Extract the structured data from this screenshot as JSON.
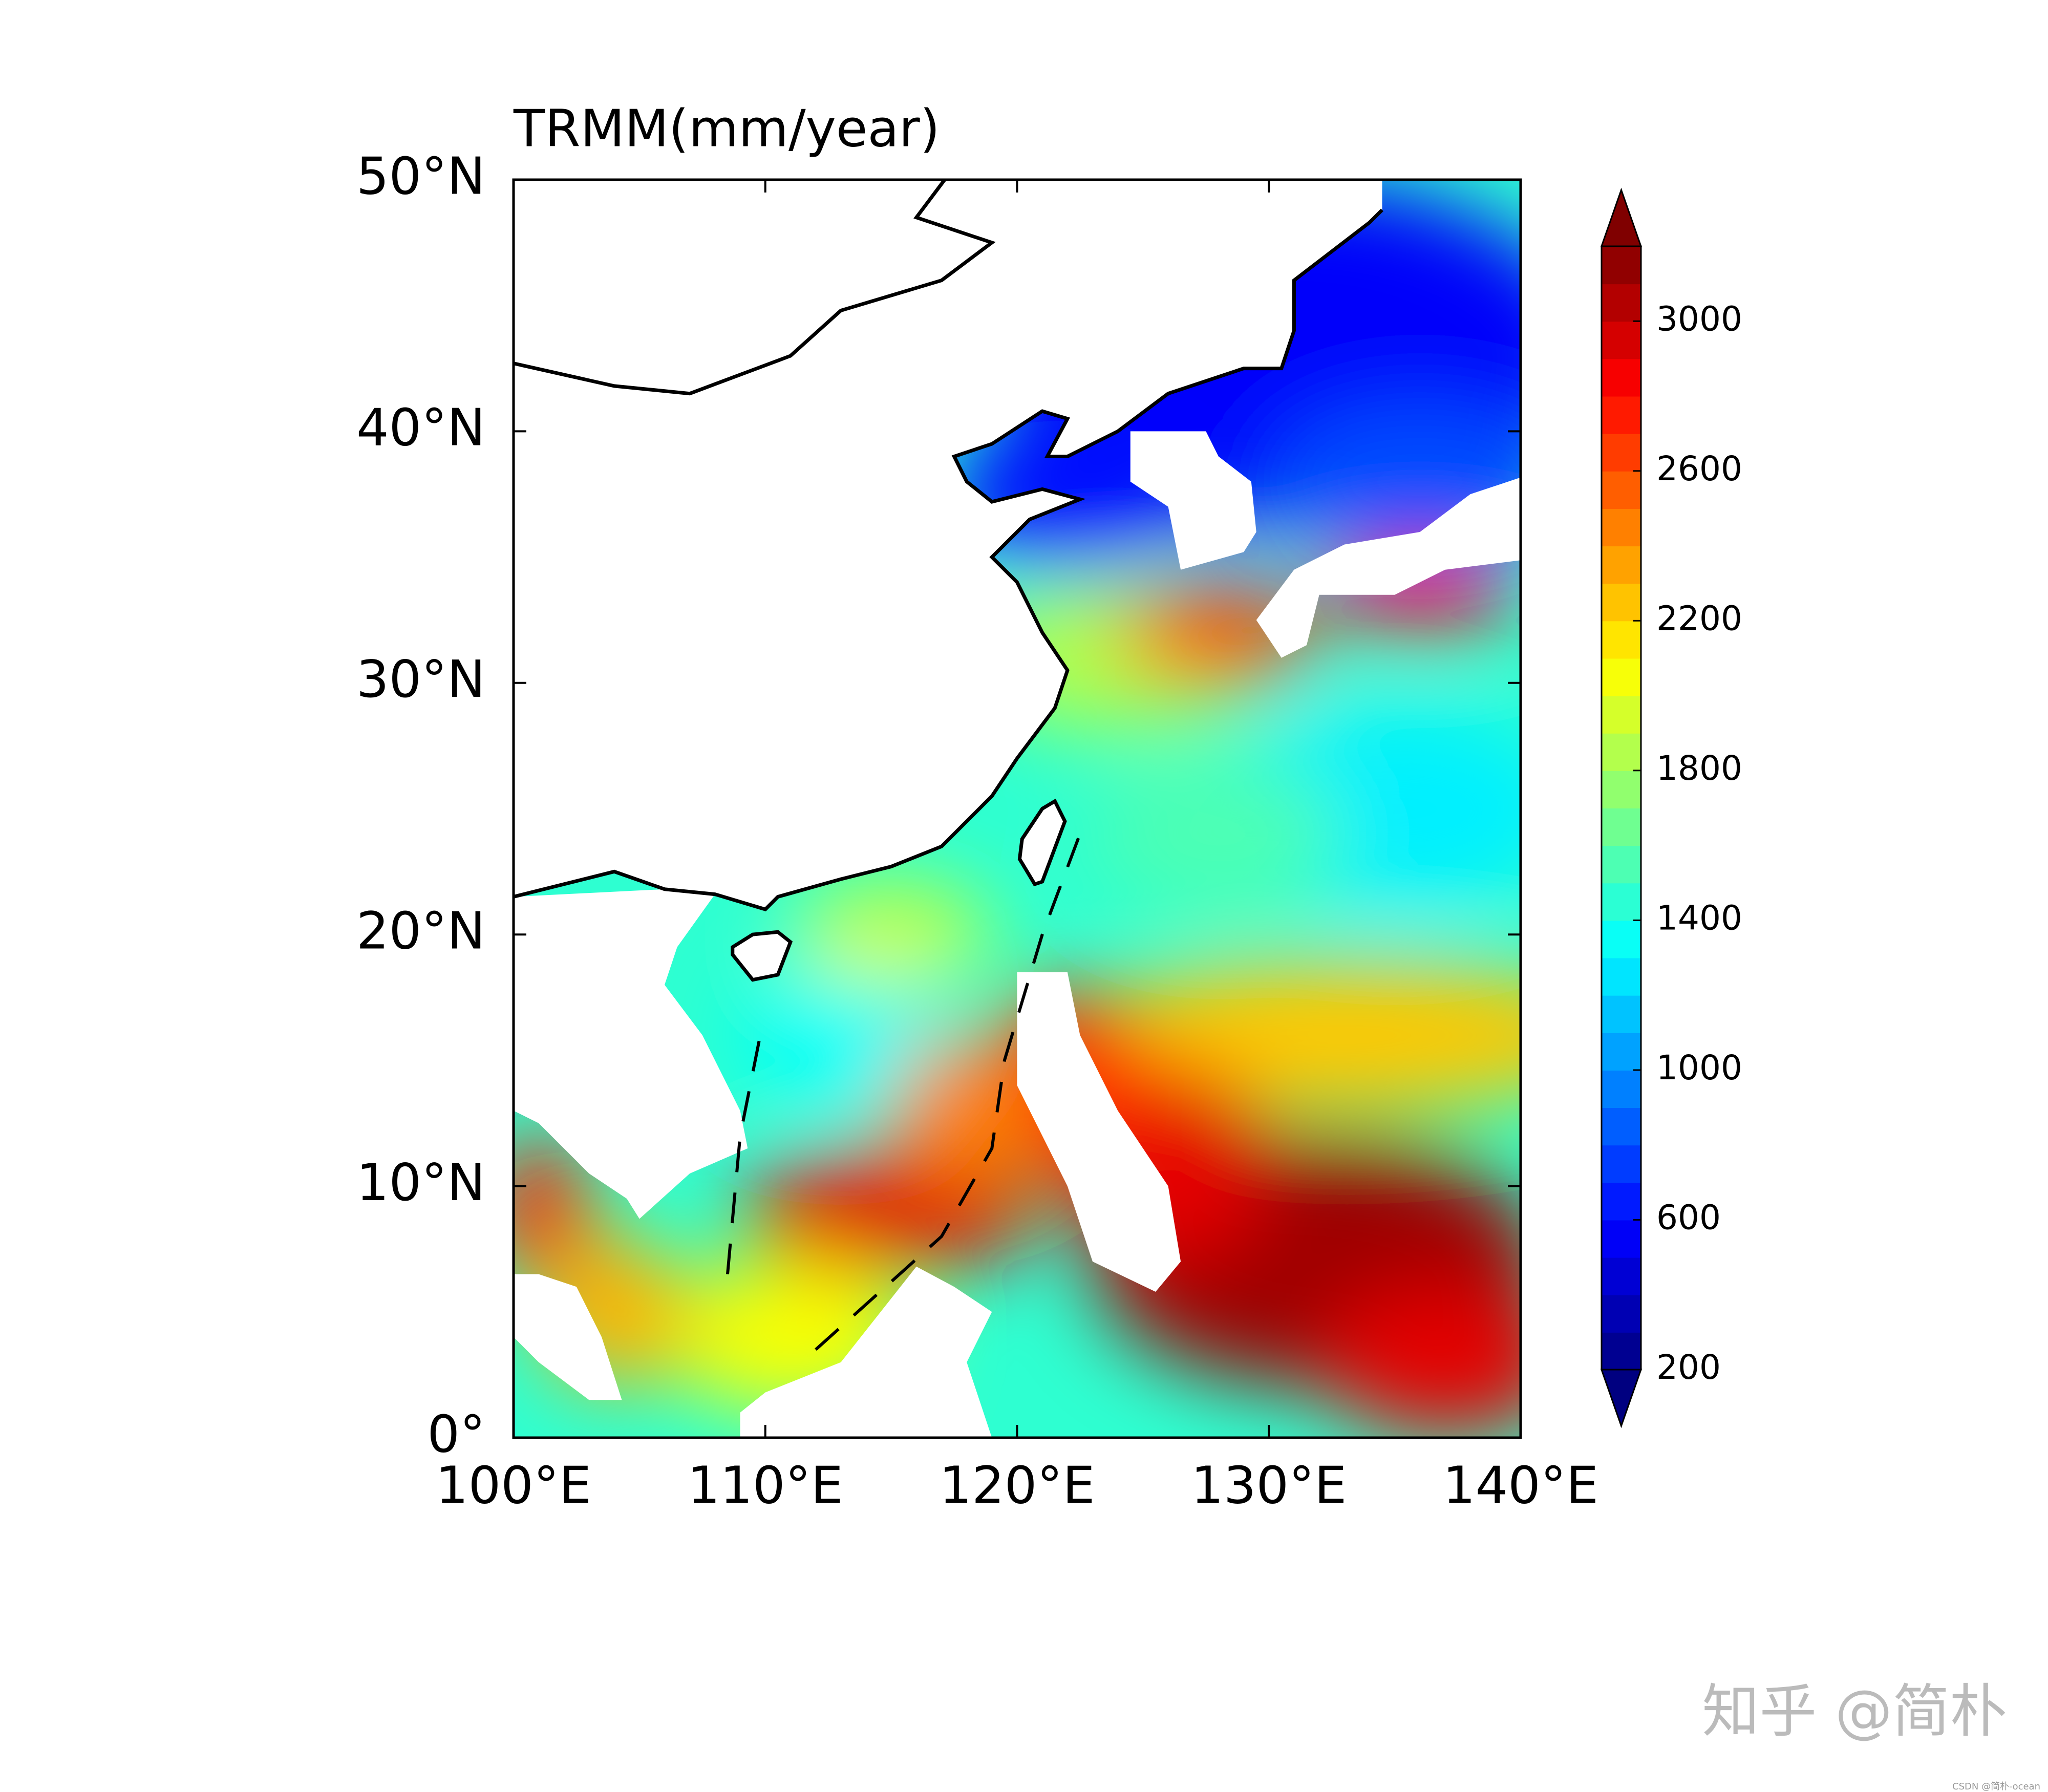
{
  "chart_data": {
    "type": "map",
    "title": "TRMM(mm/year)",
    "xlim": [
      100,
      140
    ],
    "ylim": [
      0,
      50
    ],
    "xticks": [
      {
        "value": 100,
        "label": "100°E"
      },
      {
        "value": 110,
        "label": "110°E"
      },
      {
        "value": 120,
        "label": "120°E"
      },
      {
        "value": 130,
        "label": "130°E"
      },
      {
        "value": 140,
        "label": "140°E"
      }
    ],
    "yticks": [
      {
        "value": 0,
        "label": "0°"
      },
      {
        "value": 10,
        "label": "10°N"
      },
      {
        "value": 20,
        "label": "20°N"
      },
      {
        "value": 30,
        "label": "30°N"
      },
      {
        "value": 40,
        "label": "40°N"
      },
      {
        "value": 50,
        "label": "50°N"
      }
    ],
    "colorbar": {
      "colormap": "jet",
      "lim": [
        200,
        3200
      ],
      "ticks": [
        200,
        600,
        1000,
        1400,
        1800,
        2200,
        2600,
        3000
      ],
      "extend": "both"
    }
  },
  "watermark": "知乎 @简朴",
  "credit": "CSDN @简朴-ocean"
}
